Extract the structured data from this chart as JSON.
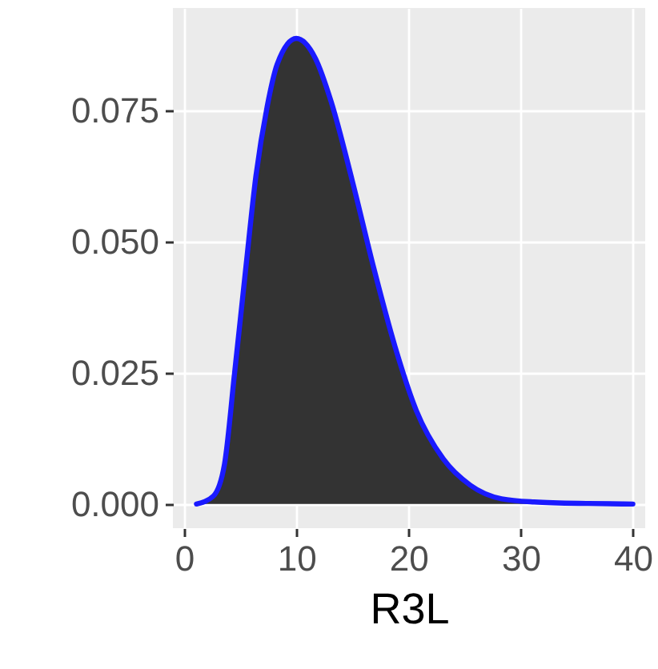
{
  "chart_data": {
    "type": "area",
    "xlabel": "R3L",
    "xlim": [
      -1,
      41.1
    ],
    "ylim": [
      -0.0046,
      0.0945
    ],
    "xticks": [
      0,
      10,
      20,
      30,
      40
    ],
    "yticks": [
      {
        "value": 0,
        "label": "0.000"
      },
      {
        "value": 0.025,
        "label": "0.025"
      },
      {
        "value": 0.05,
        "label": "0.050"
      },
      {
        "value": 0.075,
        "label": "0.075"
      }
    ],
    "grid": true,
    "series": [
      {
        "color": "#333333",
        "x": [
          1.1,
          2.6,
          3.6,
          4.5,
          5.5,
          6.4,
          7.4,
          8.3,
          10,
          11.7,
          13.1,
          15,
          16.9,
          18.8,
          20.7,
          23.1,
          25.5,
          28.3,
          31.2
        ],
        "values": [
          0,
          0.0015,
          0.0076,
          0.025,
          0.045,
          0.0625,
          0.0757,
          0.0838,
          0.0887,
          0.0849,
          0.0767,
          0.0615,
          0.045,
          0.03,
          0.0178,
          0.0086,
          0.0036,
          0.001,
          0.0004
        ]
      },
      {
        "type": "line",
        "color": "#1a1aff",
        "x": [
          1.1,
          2.6,
          3.6,
          4.5,
          5.5,
          6.4,
          7.4,
          8.3,
          10,
          11.7,
          13.1,
          15,
          16.9,
          18.8,
          20.7,
          23.1,
          25.5,
          28.3,
          31.2,
          36,
          40
        ],
        "values": [
          0,
          0.0015,
          0.0076,
          0.025,
          0.045,
          0.0625,
          0.0757,
          0.0838,
          0.0887,
          0.0849,
          0.0767,
          0.0615,
          0.045,
          0.03,
          0.0178,
          0.0086,
          0.0036,
          0.001,
          0.0004,
          0.0001,
          0
        ]
      }
    ]
  }
}
